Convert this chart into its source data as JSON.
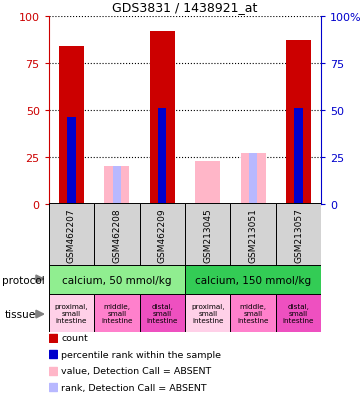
{
  "title": "GDS3831 / 1438921_at",
  "samples": [
    "GSM462207",
    "GSM462208",
    "GSM462209",
    "GSM213045",
    "GSM213051",
    "GSM213057"
  ],
  "count_values": [
    84,
    0,
    92,
    0,
    0,
    87
  ],
  "rank_values": [
    46,
    0,
    51,
    0,
    0,
    51
  ],
  "absent_value_values": [
    0,
    20,
    0,
    23,
    27,
    0
  ],
  "absent_rank_values": [
    0,
    20,
    0,
    0,
    27,
    0
  ],
  "protocol_groups": [
    {
      "label": "calcium, 50 mmol/kg",
      "start": 0,
      "end": 3,
      "color": "#90EE90"
    },
    {
      "label": "calcium, 150 mmol/kg",
      "start": 3,
      "end": 6,
      "color": "#33CC55"
    }
  ],
  "tissue_labels": [
    "proximal,\nsmall\nintestine",
    "middle,\nsmall\nintestine",
    "distal,\nsmall\nintestine",
    "proximal,\nsmall\nintestine",
    "middle,\nsmall\nintestine",
    "distal,\nsmall\nintestine"
  ],
  "tissue_colors": [
    "#FFD0E8",
    "#FF80CC",
    "#EE50C0",
    "#FFD0E8",
    "#FF80CC",
    "#EE50C0"
  ],
  "bar_width": 0.55,
  "rank_bar_width": 0.18,
  "ylim": [
    0,
    100
  ],
  "yticks": [
    0,
    25,
    50,
    75,
    100
  ],
  "color_count": "#CC0000",
  "color_rank": "#0000CC",
  "color_absent_value": "#FFB6C8",
  "color_absent_rank": "#B8B8FF",
  "left_ycolor": "#CC0000",
  "right_ycolor": "#0000CC",
  "legend_items": [
    {
      "color": "#CC0000",
      "label": "count"
    },
    {
      "color": "#0000CC",
      "label": "percentile rank within the sample"
    },
    {
      "color": "#FFB6C8",
      "label": "value, Detection Call = ABSENT"
    },
    {
      "color": "#B8B8FF",
      "label": "rank, Detection Call = ABSENT"
    }
  ],
  "fig_width": 3.61,
  "fig_height": 4.14,
  "dpi": 100
}
